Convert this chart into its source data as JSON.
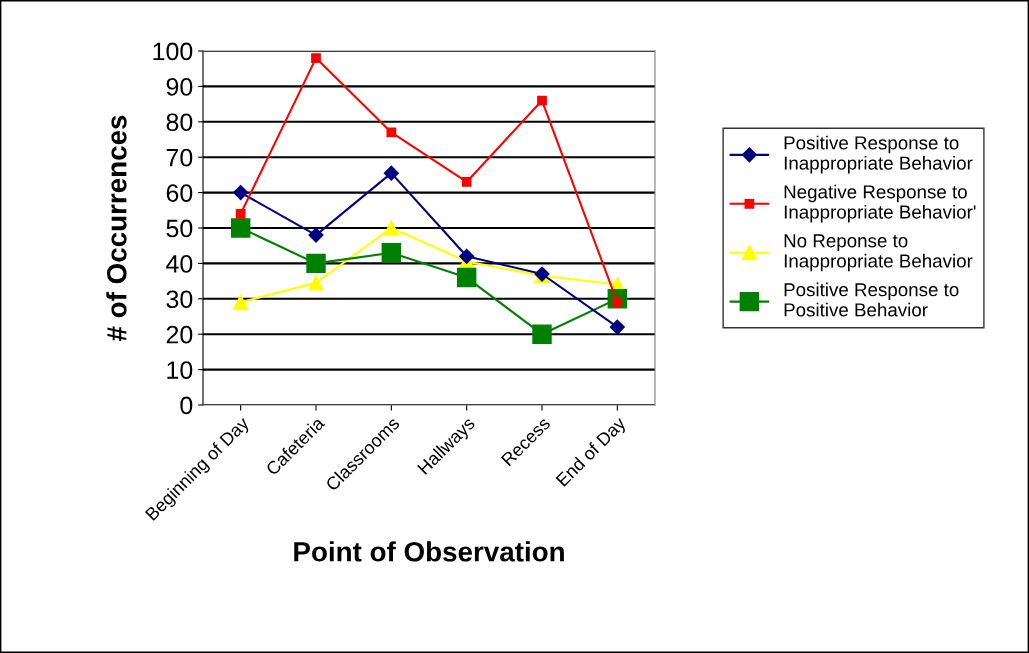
{
  "chart_data": {
    "type": "line",
    "xlabel": "Point of Observation",
    "ylabel": "# of Occurrences",
    "categories": [
      "Beginning of Day",
      "Cafeteria",
      "Classrooms",
      "Hallways",
      "Recess",
      "End of Day"
    ],
    "series": [
      {
        "name": "Positive Response to\nInappropriate Behavior",
        "color": "#000080",
        "marker": "diamond",
        "values": [
          60,
          48,
          65.5,
          42,
          37,
          22
        ]
      },
      {
        "name": "Negative Response to\nInappropriate Behavior'",
        "color": "#ff0000",
        "marker": "square",
        "values": [
          54,
          98,
          77,
          63,
          86,
          29
        ]
      },
      {
        "name": "No Reponse to\nInappropriate Behavior",
        "color": "#ffff00",
        "marker": "triangle",
        "values": [
          29,
          34.5,
          50,
          40.5,
          36.5,
          34
        ]
      },
      {
        "name": "Positive Response to\nPositive Behavior",
        "color": "#008000",
        "marker": "square",
        "values": [
          50,
          40,
          43,
          36,
          20,
          30
        ]
      }
    ],
    "ylim": [
      0,
      100
    ],
    "yticks": [
      0,
      10,
      20,
      30,
      40,
      50,
      60,
      70,
      80,
      90,
      100
    ],
    "grid": "y",
    "legend": "right",
    "line_style": "solid"
  }
}
